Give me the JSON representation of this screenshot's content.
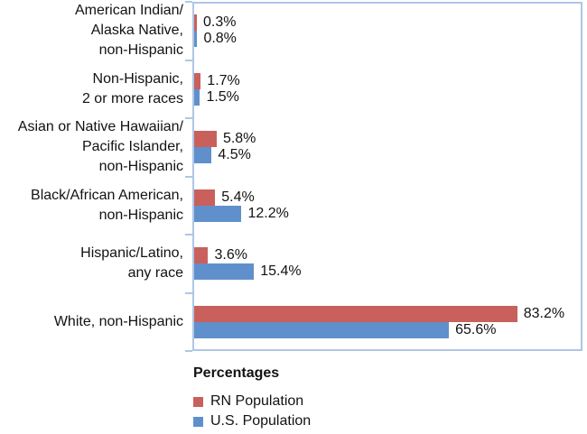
{
  "chart_data": {
    "type": "bar",
    "orientation": "horizontal",
    "title": "Percentages",
    "categories": [
      "American Indian/\nAlaska Native,\nnon-Hispanic",
      "Non-Hispanic,\n2 or more races",
      "Asian or Native Hawaiian/\nPacific Islander,\nnon-Hispanic",
      "Black/African American,\nnon-Hispanic",
      "Hispanic/Latino,\nany race",
      "White, non-Hispanic"
    ],
    "series": [
      {
        "name": "RN Population",
        "color": "#C9605C",
        "values": [
          0.3,
          1.7,
          5.8,
          5.4,
          3.6,
          83.2
        ]
      },
      {
        "name": "U.S. Population",
        "color": "#6090CB",
        "values": [
          0.8,
          1.5,
          4.5,
          12.2,
          15.4,
          65.6
        ]
      }
    ],
    "data_labels": [
      [
        "0.3%",
        "0.8%"
      ],
      [
        "1.7%",
        "1.5%"
      ],
      [
        "5.8%",
        "4.5%"
      ],
      [
        "5.4%",
        "12.2%"
      ],
      [
        "3.6%",
        "15.4%"
      ],
      [
        "83.2%",
        "65.6%"
      ]
    ],
    "xlim": [
      0,
      100
    ],
    "grid": "off",
    "legend_position": "bottom-left",
    "axis_color": "#AFC6E6",
    "value_label_suffix": "%"
  }
}
